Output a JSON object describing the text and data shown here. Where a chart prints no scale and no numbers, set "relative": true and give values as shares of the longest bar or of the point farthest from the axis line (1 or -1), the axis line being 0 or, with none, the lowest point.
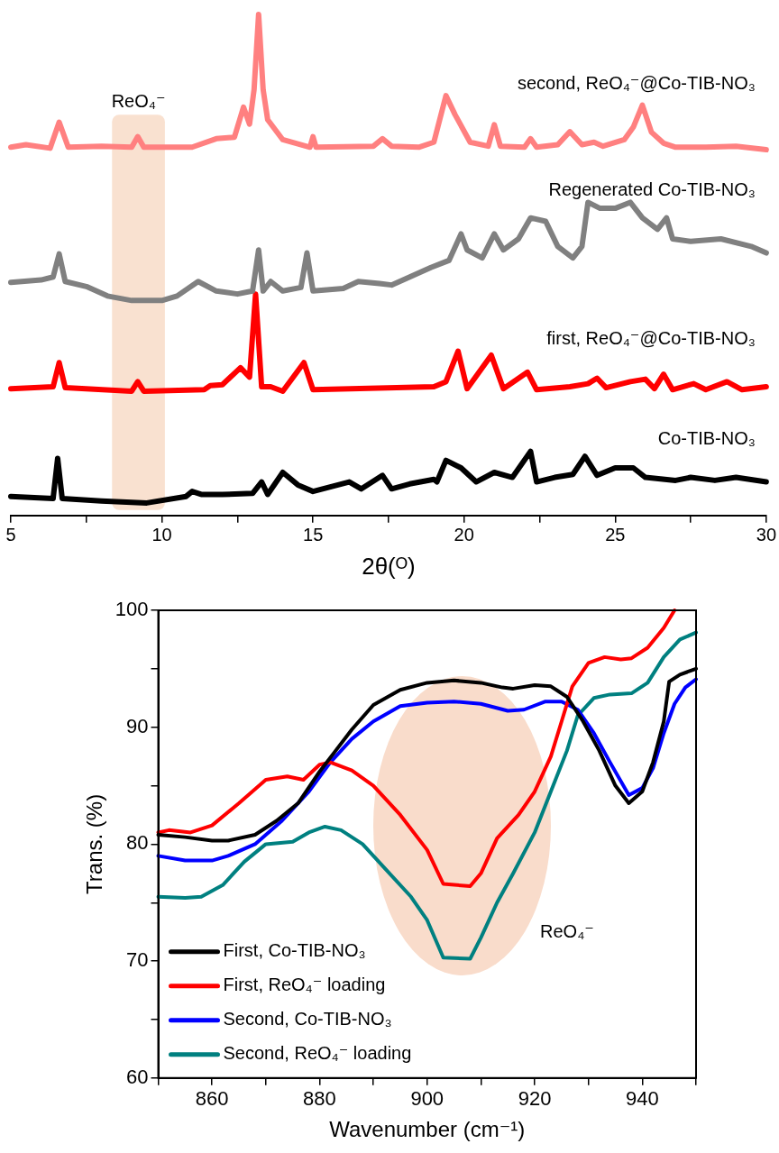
{
  "chart_data": [
    {
      "type": "line",
      "relative": true,
      "xlabel": "2θ(ᴼ)",
      "xlim": [
        5,
        30
      ],
      "xticks": [
        5,
        {
          "value": 7.5,
          "label": null
        },
        10,
        {
          "value": 12.5,
          "label": null
        },
        15,
        {
          "value": 17.5,
          "label": null
        },
        20,
        {
          "value": 22.5,
          "label": null
        },
        25,
        {
          "value": 27.5,
          "label": null
        },
        30
      ],
      "marker": "none",
      "line_style": "solid",
      "bands": [
        {
          "axis": "x",
          "from": 8.35,
          "to": 10.1,
          "label": "ReO₄⁻",
          "color": "#f8dcc8"
        }
      ],
      "series": [
        {
          "name": "second, ReO₄⁻@Co-TIB-NO₃",
          "color": "#ff8080",
          "x": [
            5,
            5.5,
            6.3,
            6.6,
            6.9,
            8,
            9.0,
            9.2,
            9.4,
            11,
            11.8,
            12.4,
            12.7,
            12.9,
            13.05,
            13.2,
            13.35,
            13.5,
            14.0,
            14.9,
            15.0,
            15.1,
            17.0,
            17.3,
            17.6,
            18.5,
            19.0,
            19.4,
            19.7,
            20.2,
            20.8,
            21.0,
            21.2,
            22.0,
            22.2,
            22.4,
            23.1,
            23.5,
            23.9,
            24.3,
            24.6,
            25.3,
            25.6,
            25.9,
            26.2,
            26.6,
            27.0,
            28,
            29,
            30
          ],
          "values": [
            0.735,
            0.74,
            0.733,
            0.785,
            0.735,
            0.737,
            0.735,
            0.756,
            0.735,
            0.735,
            0.752,
            0.755,
            0.815,
            0.781,
            0.85,
            1.0,
            0.85,
            0.79,
            0.75,
            0.735,
            0.756,
            0.735,
            0.737,
            0.752,
            0.737,
            0.735,
            0.745,
            0.838,
            0.8,
            0.745,
            0.737,
            0.78,
            0.737,
            0.735,
            0.752,
            0.735,
            0.74,
            0.766,
            0.74,
            0.745,
            0.737,
            0.75,
            0.775,
            0.819,
            0.765,
            0.743,
            0.735,
            0.735,
            0.737,
            0.73
          ]
        },
        {
          "name": "Regenerated Co-TIB-NO₃",
          "color": "#808080",
          "x": [
            5,
            6,
            6.4,
            6.6,
            6.8,
            7.5,
            8.2,
            9,
            10,
            10.5,
            11.2,
            11.8,
            12.5,
            13.0,
            13.2,
            13.35,
            13.6,
            14.0,
            14.6,
            14.8,
            15.0,
            16,
            16.5,
            17.2,
            17.6,
            18.2,
            18.9,
            19.5,
            19.9,
            20.1,
            20.6,
            21.0,
            21.3,
            21.8,
            22.2,
            22.7,
            23.1,
            23.6,
            23.9,
            24.1,
            24.5,
            25.0,
            25.5,
            25.9,
            26.4,
            26.7,
            26.9,
            27.5,
            28.5,
            29.5,
            30
          ],
          "values": [
            0.465,
            0.47,
            0.476,
            0.522,
            0.467,
            0.457,
            0.438,
            0.429,
            0.429,
            0.438,
            0.467,
            0.448,
            0.442,
            0.448,
            0.53,
            0.448,
            0.467,
            0.448,
            0.455,
            0.524,
            0.448,
            0.453,
            0.467,
            0.463,
            0.46,
            0.476,
            0.495,
            0.509,
            0.562,
            0.53,
            0.514,
            0.562,
            0.53,
            0.552,
            0.594,
            0.587,
            0.537,
            0.514,
            0.537,
            0.625,
            0.613,
            0.613,
            0.625,
            0.594,
            0.571,
            0.594,
            0.552,
            0.547,
            0.552,
            0.537,
            0.524
          ]
        },
        {
          "name": "first, ReO₄⁻@Co-TIB-NO₃",
          "color": "#ff0000",
          "x": [
            5,
            6.4,
            6.6,
            6.8,
            9.0,
            9.2,
            9.4,
            11.4,
            11.6,
            12.0,
            12.6,
            12.9,
            13.1,
            13.3,
            13.6,
            14.0,
            14.7,
            15.0,
            19.0,
            19.4,
            19.8,
            20.1,
            20.9,
            21.3,
            22.1,
            22.4,
            23.5,
            24.1,
            24.4,
            24.7,
            25.5,
            26.0,
            26.3,
            26.6,
            26.9,
            27.6,
            28.0,
            28.7,
            29.2,
            30
          ],
          "values": [
            0.253,
            0.257,
            0.305,
            0.255,
            0.248,
            0.267,
            0.248,
            0.251,
            0.259,
            0.261,
            0.295,
            0.276,
            0.442,
            0.257,
            0.257,
            0.248,
            0.305,
            0.251,
            0.257,
            0.267,
            0.328,
            0.253,
            0.32,
            0.253,
            0.286,
            0.251,
            0.257,
            0.263,
            0.274,
            0.255,
            0.267,
            0.272,
            0.253,
            0.282,
            0.251,
            0.263,
            0.251,
            0.267,
            0.251,
            0.257
          ]
        },
        {
          "name": "Co-TIB-NO₃",
          "color": "#000000",
          "x": [
            5,
            6.4,
            6.55,
            6.7,
            8,
            9.5,
            10.8,
            11,
            11.3,
            12,
            13,
            13.3,
            13.5,
            14.0,
            14.5,
            15,
            16.2,
            16.6,
            17.3,
            17.6,
            18.2,
            19.0,
            19.1,
            19.4,
            19.9,
            20.4,
            21.0,
            21.6,
            22.2,
            22.4,
            23.0,
            23.6,
            24.0,
            24.4,
            25.0,
            25.6,
            26.0,
            27.0,
            27.5,
            28.3,
            29.0,
            30
          ],
          "values": [
            0.038,
            0.034,
            0.114,
            0.034,
            0.029,
            0.025,
            0.038,
            0.048,
            0.042,
            0.042,
            0.044,
            0.067,
            0.042,
            0.086,
            0.061,
            0.048,
            0.067,
            0.053,
            0.08,
            0.053,
            0.063,
            0.072,
            0.067,
            0.11,
            0.095,
            0.067,
            0.086,
            0.076,
            0.128,
            0.067,
            0.076,
            0.082,
            0.118,
            0.08,
            0.095,
            0.095,
            0.076,
            0.07,
            0.076,
            0.07,
            0.076,
            0.067
          ]
        }
      ]
    },
    {
      "type": "line",
      "xlabel": "Wavenumber (cm⁻¹)",
      "ylabel": "Trans. (%)",
      "xlim": [
        850,
        950
      ],
      "xticks": [
        {
          "value": 850,
          "label": null
        },
        860,
        {
          "value": 870,
          "label": null
        },
        880,
        {
          "value": 890,
          "label": null
        },
        900,
        {
          "value": 910,
          "label": null
        },
        920,
        {
          "value": 930,
          "label": null
        },
        940,
        {
          "value": 950,
          "label": null
        }
      ],
      "ylim": [
        60,
        100
      ],
      "yticks": [
        60,
        {
          "value": 65,
          "label": null
        },
        70,
        {
          "value": 75,
          "label": null
        },
        80,
        {
          "value": 85,
          "label": null
        },
        90,
        {
          "value": 95,
          "label": null
        },
        100
      ],
      "marker": "none",
      "line_style": "solid",
      "legend": "bottom left",
      "annotations": [
        "ReO₄⁻"
      ],
      "series": [
        {
          "name": "First, Co-TIB-NO₃",
          "color": "#000000",
          "x": [
            850,
            855,
            860,
            863,
            868,
            872,
            876,
            880,
            883,
            886,
            890,
            895,
            900,
            905,
            910,
            914,
            916,
            920,
            923,
            926,
            929,
            932,
            935,
            937.5,
            940,
            942,
            944,
            945,
            947,
            950
          ],
          "values": [
            80.8,
            80.6,
            80.3,
            80.3,
            80.8,
            82,
            83.5,
            86.2,
            88,
            89.8,
            91.9,
            93.2,
            93.8,
            94,
            93.8,
            93.4,
            93.3,
            93.6,
            93.5,
            92.6,
            90.5,
            88,
            85,
            83.5,
            84.5,
            87,
            90.5,
            93.9,
            94.5,
            95
          ]
        },
        {
          "name": "First, ReO₄⁻ loading",
          "color": "#ff0000",
          "x": [
            850,
            852,
            856,
            860,
            865,
            870,
            874,
            877,
            880,
            882,
            886,
            890,
            895,
            900,
            903,
            908,
            910,
            913,
            917,
            920,
            923,
            925,
            927,
            930,
            933,
            936,
            938,
            941,
            944,
            946
          ],
          "values": [
            81,
            81.2,
            81,
            81.6,
            83.5,
            85.5,
            85.8,
            85.5,
            86.8,
            87,
            86.3,
            85,
            82.5,
            79.5,
            76.6,
            76.4,
            77.5,
            80.5,
            82.5,
            84.5,
            87.5,
            90.5,
            93.5,
            95.5,
            96,
            95.8,
            95.9,
            96.8,
            98.5,
            100
          ]
        },
        {
          "name": "Second, Co-TIB-NO₃",
          "color": "#0000ff",
          "x": [
            850,
            855,
            860,
            863,
            868,
            873,
            878,
            882,
            886,
            890,
            895,
            900,
            905,
            910,
            915,
            918,
            922,
            925,
            928,
            931,
            934,
            937.5,
            940,
            942,
            944,
            946,
            948,
            950
          ],
          "values": [
            79,
            78.6,
            78.6,
            79,
            80,
            82,
            84.5,
            87,
            89,
            90.5,
            91.8,
            92.1,
            92.2,
            92,
            91.4,
            91.5,
            92.2,
            92.2,
            91.5,
            89.5,
            87,
            84.2,
            84.8,
            86.5,
            89.5,
            92,
            93.4,
            94.1
          ]
        },
        {
          "name": "Second, ReO₄⁻ loading",
          "color": "#008080",
          "x": [
            850,
            855,
            858,
            862,
            866,
            870,
            875,
            878,
            881,
            884,
            888,
            892,
            897,
            900,
            903,
            908,
            910,
            913,
            916,
            920,
            923,
            926,
            928,
            931,
            934,
            938,
            941,
            944,
            947,
            950
          ],
          "values": [
            75.5,
            75.4,
            75.5,
            76.5,
            78.5,
            80,
            80.2,
            81,
            81.5,
            81.2,
            80,
            78,
            75.5,
            73.5,
            70.3,
            70.2,
            72,
            75,
            77.5,
            81,
            84.5,
            88,
            91,
            92.5,
            92.8,
            92.9,
            93.8,
            96,
            97.5,
            98.1
          ]
        }
      ]
    }
  ]
}
